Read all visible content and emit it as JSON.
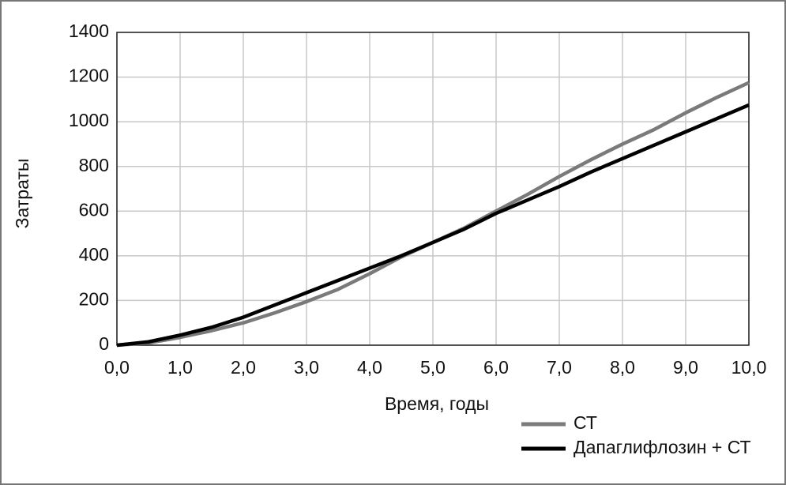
{
  "chart_data": {
    "type": "line",
    "x": [
      0,
      0.5,
      1,
      1.5,
      2,
      2.5,
      3,
      3.5,
      4,
      4.5,
      5,
      5.5,
      6,
      6.5,
      7,
      7.5,
      8,
      8.5,
      9,
      9.5,
      10
    ],
    "series": [
      {
        "name": "СТ",
        "color": "#7a7a7a",
        "values": [
          0,
          10,
          35,
          65,
          100,
          145,
          195,
          250,
          320,
          395,
          460,
          525,
          600,
          675,
          755,
          830,
          900,
          965,
          1040,
          1110,
          1175
        ]
      },
      {
        "name": "Дапаглифлозин + СТ",
        "color": "#000000",
        "values": [
          0,
          15,
          45,
          80,
          125,
          180,
          235,
          290,
          345,
          400,
          460,
          520,
          590,
          650,
          710,
          775,
          835,
          895,
          955,
          1015,
          1075
        ]
      }
    ],
    "xlabel": "Время, годы",
    "ylabel": "Затраты",
    "xlim": [
      0,
      10
    ],
    "ylim": [
      0,
      1400
    ],
    "xticks": [
      {
        "value": 0,
        "label": "0,0"
      },
      {
        "value": 1,
        "label": "1,0"
      },
      {
        "value": 2,
        "label": "2,0"
      },
      {
        "value": 3,
        "label": "3,0"
      },
      {
        "value": 4,
        "label": "4,0"
      },
      {
        "value": 5,
        "label": "5,0"
      },
      {
        "value": 6,
        "label": "6,0"
      },
      {
        "value": 7,
        "label": "7,0"
      },
      {
        "value": 8,
        "label": "8,0"
      },
      {
        "value": 9,
        "label": "9,0"
      },
      {
        "value": 10,
        "label": "10,0"
      }
    ],
    "yticks": [
      0,
      200,
      400,
      600,
      800,
      1000,
      1200,
      1400
    ],
    "grid": true,
    "legend": "below-right"
  }
}
